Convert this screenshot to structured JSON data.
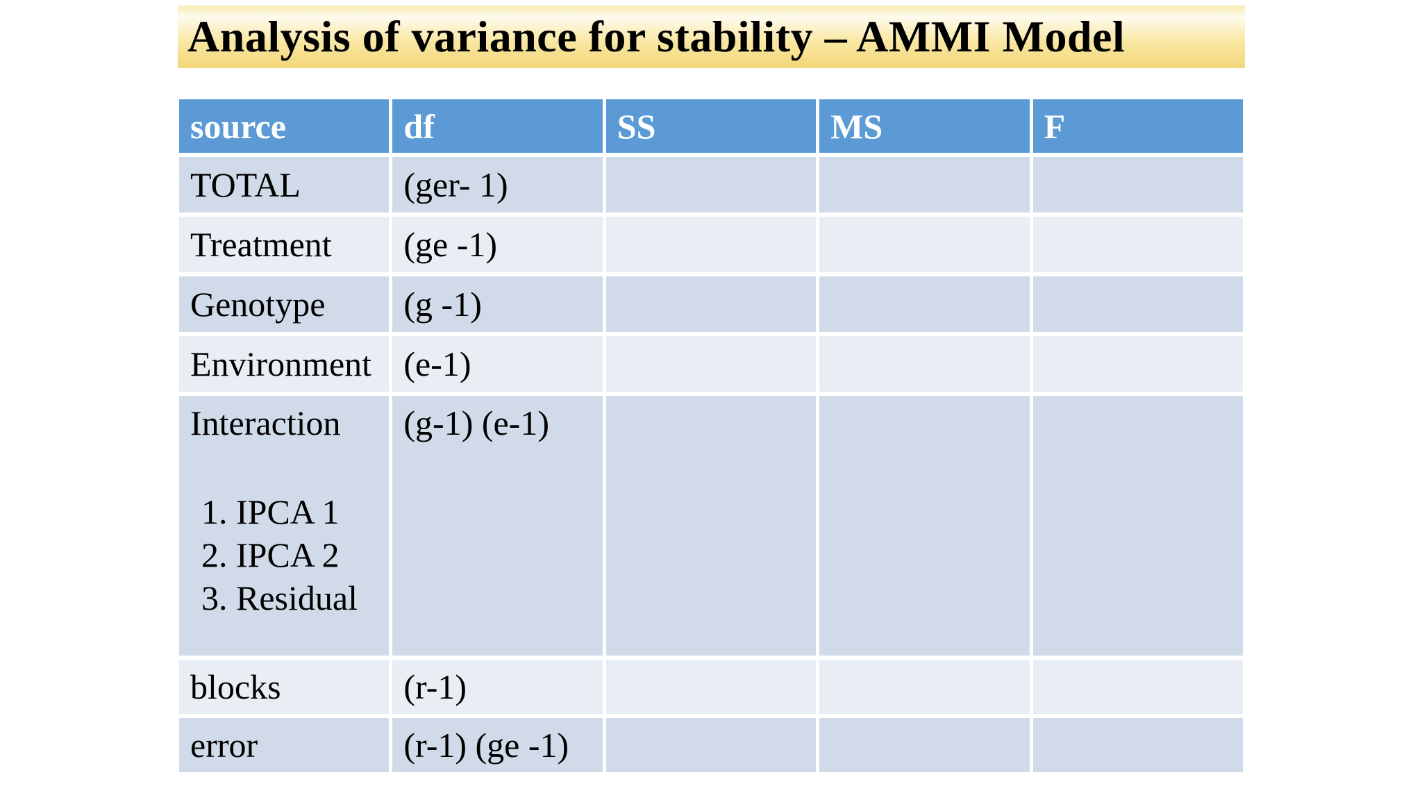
{
  "slide": {
    "title": "Analysis of variance for stability – AMMI Model"
  },
  "colors": {
    "header_bg": "#5B9AD4",
    "header_text": "#FFFFFF",
    "band_dark": "#D0DAE8",
    "band_light": "#E9EEF5",
    "body_text": "#000000",
    "title_text": "#000000",
    "title_gradient_top": "#F8EBB2",
    "title_gradient_light": "#FEFBEE",
    "title_gradient_mid": "#F9E7A2",
    "title_gradient_bottom": "#F2D678"
  },
  "table": {
    "columns": [
      "source",
      "df",
      "SS",
      "MS",
      "F"
    ],
    "rows": [
      {
        "key": "total",
        "source": "TOTAL",
        "df": "(ger- 1)",
        "ss": "",
        "ms": "",
        "f": "",
        "band": "dark"
      },
      {
        "key": "treatment",
        "source": "Treatment",
        "df": "(ge -1)",
        "ss": "",
        "ms": "",
        "f": "",
        "band": "light"
      },
      {
        "key": "genotype",
        "source": "Genotype",
        "df": "(g -1)",
        "ss": "",
        "ms": "",
        "f": "",
        "band": "dark"
      },
      {
        "key": "environment",
        "source": "Environment",
        "df": "(e-1)",
        "ss": "",
        "ms": "",
        "f": "",
        "band": "light"
      },
      {
        "key": "interaction",
        "source": "Interaction",
        "df": "(g-1) (e-1)",
        "ss": "",
        "ms": "",
        "f": "",
        "band": "dark",
        "tall": true,
        "sublist": [
          "1. IPCA 1",
          "2. IPCA 2",
          "3. Residual"
        ]
      },
      {
        "key": "blocks",
        "source": "blocks",
        "df": "(r-1)",
        "ss": "",
        "ms": "",
        "f": "",
        "band": "light",
        "short": true
      },
      {
        "key": "error",
        "source": "error",
        "df": "(r-1) (ge -1)",
        "ss": "",
        "ms": "",
        "f": "",
        "band": "dark",
        "short": true
      }
    ]
  }
}
